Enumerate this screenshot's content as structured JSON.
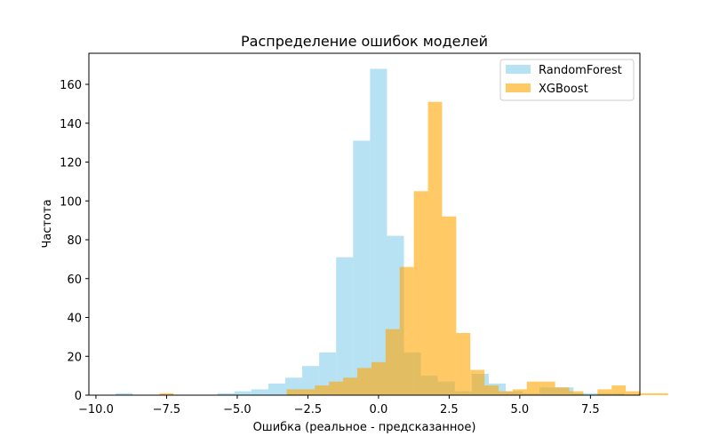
{
  "chart_data": {
    "type": "histogram",
    "title": "Распределение ошибок моделей",
    "xlabel": "Ошибка (реальное - предсказанное)",
    "ylabel": "Частота",
    "xlim": [
      -10.25,
      9.25
    ],
    "ylim": [
      0,
      176
    ],
    "xticks": [
      -10.0,
      -7.5,
      -5.0,
      -2.5,
      0.0,
      2.5,
      5.0,
      7.5
    ],
    "xtick_labels": [
      "−10.0",
      "−7.5",
      "−5.0",
      "−2.5",
      "0.0",
      "2.5",
      "5.0",
      "7.5"
    ],
    "yticks": [
      0,
      20,
      40,
      60,
      80,
      100,
      120,
      140,
      160
    ],
    "ytick_labels": [
      "0",
      "20",
      "40",
      "60",
      "80",
      "100",
      "120",
      "140",
      "160"
    ],
    "grid": false,
    "legend_position": "top-right",
    "series": [
      {
        "name": "RandomForest",
        "color": "#87ceeb",
        "opacity": 0.6,
        "bin_start": -9.3,
        "bin_width": 0.6,
        "counts": [
          1,
          0,
          0,
          0,
          0,
          0,
          1,
          2,
          3,
          6,
          9,
          15,
          22,
          71,
          131,
          168,
          82,
          22,
          10,
          7,
          2,
          11,
          6,
          2,
          1,
          4,
          4,
          1,
          1,
          1
        ]
      },
      {
        "name": "XGBoost",
        "color": "#ffa500",
        "opacity": 0.6,
        "bin_start": -7.75,
        "bin_width": 0.5,
        "counts": [
          1,
          0,
          0,
          0,
          0,
          0,
          0,
          0,
          0,
          3,
          3,
          5,
          7,
          9,
          14,
          17,
          34,
          66,
          105,
          151,
          92,
          32,
          13,
          5,
          2,
          3,
          7,
          7,
          4,
          2,
          0,
          3,
          5,
          2,
          1,
          1
        ]
      }
    ]
  }
}
